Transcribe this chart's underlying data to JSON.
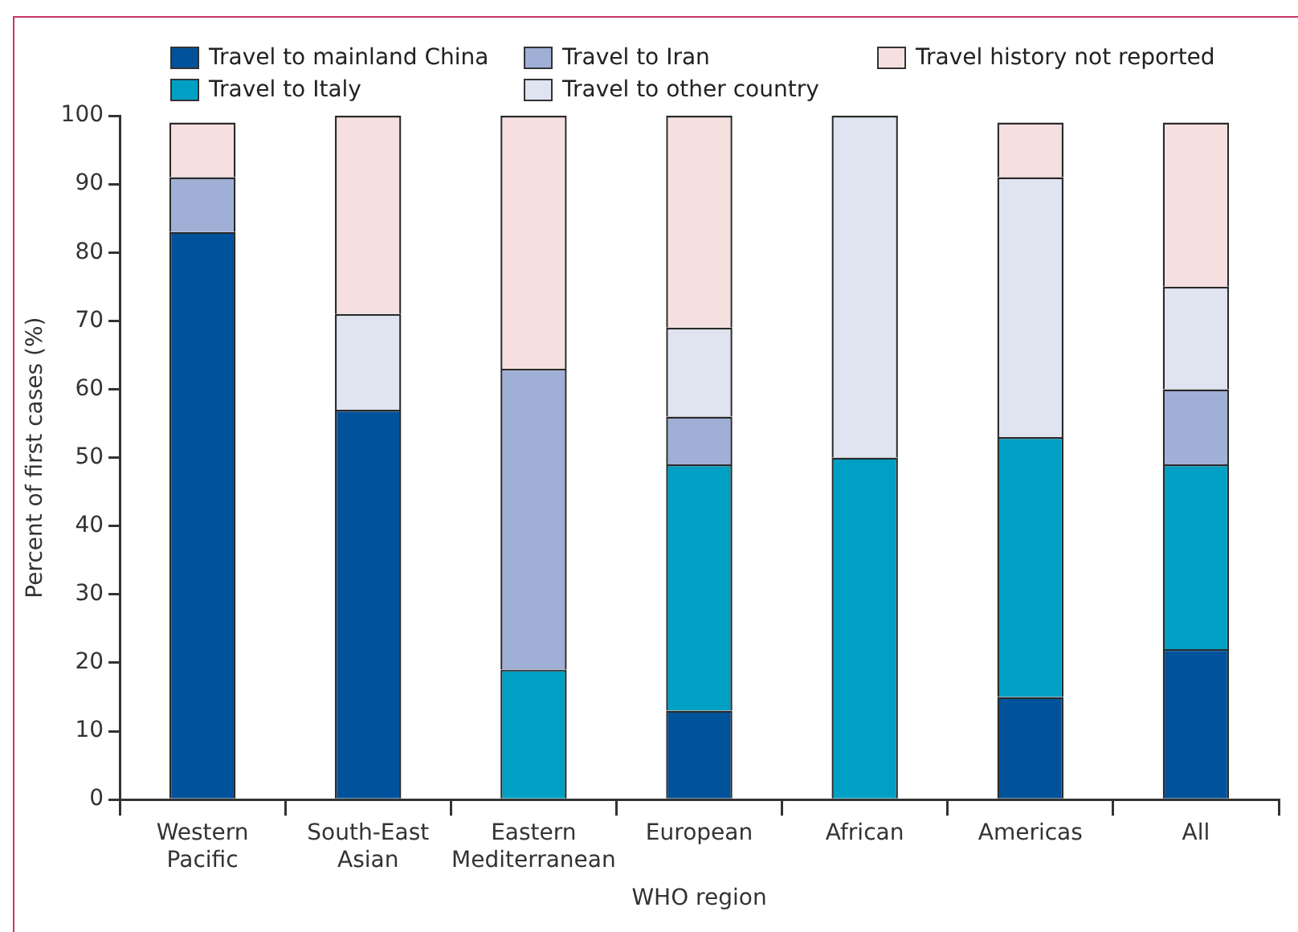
{
  "chart_data": {
    "type": "bar",
    "stacked": true,
    "xlabel": "WHO region",
    "ylabel": "Percent of first cases (%)",
    "categories": [
      "Western Pacific",
      "South-East Asian",
      "Eastern Mediterranean",
      "European",
      "African",
      "Americas",
      "All"
    ],
    "series": [
      {
        "name": "Travel to mainland China",
        "color": "#00529b",
        "values": [
          83,
          57,
          0,
          13,
          0,
          15,
          22
        ]
      },
      {
        "name": "Travel to Italy",
        "color": "#00a0c4",
        "values": [
          0,
          0,
          19,
          36,
          50,
          38,
          27
        ]
      },
      {
        "name": "Travel to Iran",
        "color": "#9fafd6",
        "values": [
          8,
          0,
          44,
          7,
          0,
          0,
          11
        ]
      },
      {
        "name": "Travel to other country",
        "color": "#dfe4f0",
        "values": [
          0,
          14,
          0,
          13,
          50,
          38,
          15
        ]
      },
      {
        "name": "Travel history not reported",
        "color": "#f5e0df",
        "values": [
          8,
          29,
          37,
          31,
          0,
          8,
          24
        ]
      }
    ],
    "ylim": [
      0,
      100
    ],
    "yticks": [
      0,
      10,
      20,
      30,
      40,
      50,
      60,
      70,
      80,
      90,
      100
    ],
    "grid": false,
    "legend": "top"
  }
}
